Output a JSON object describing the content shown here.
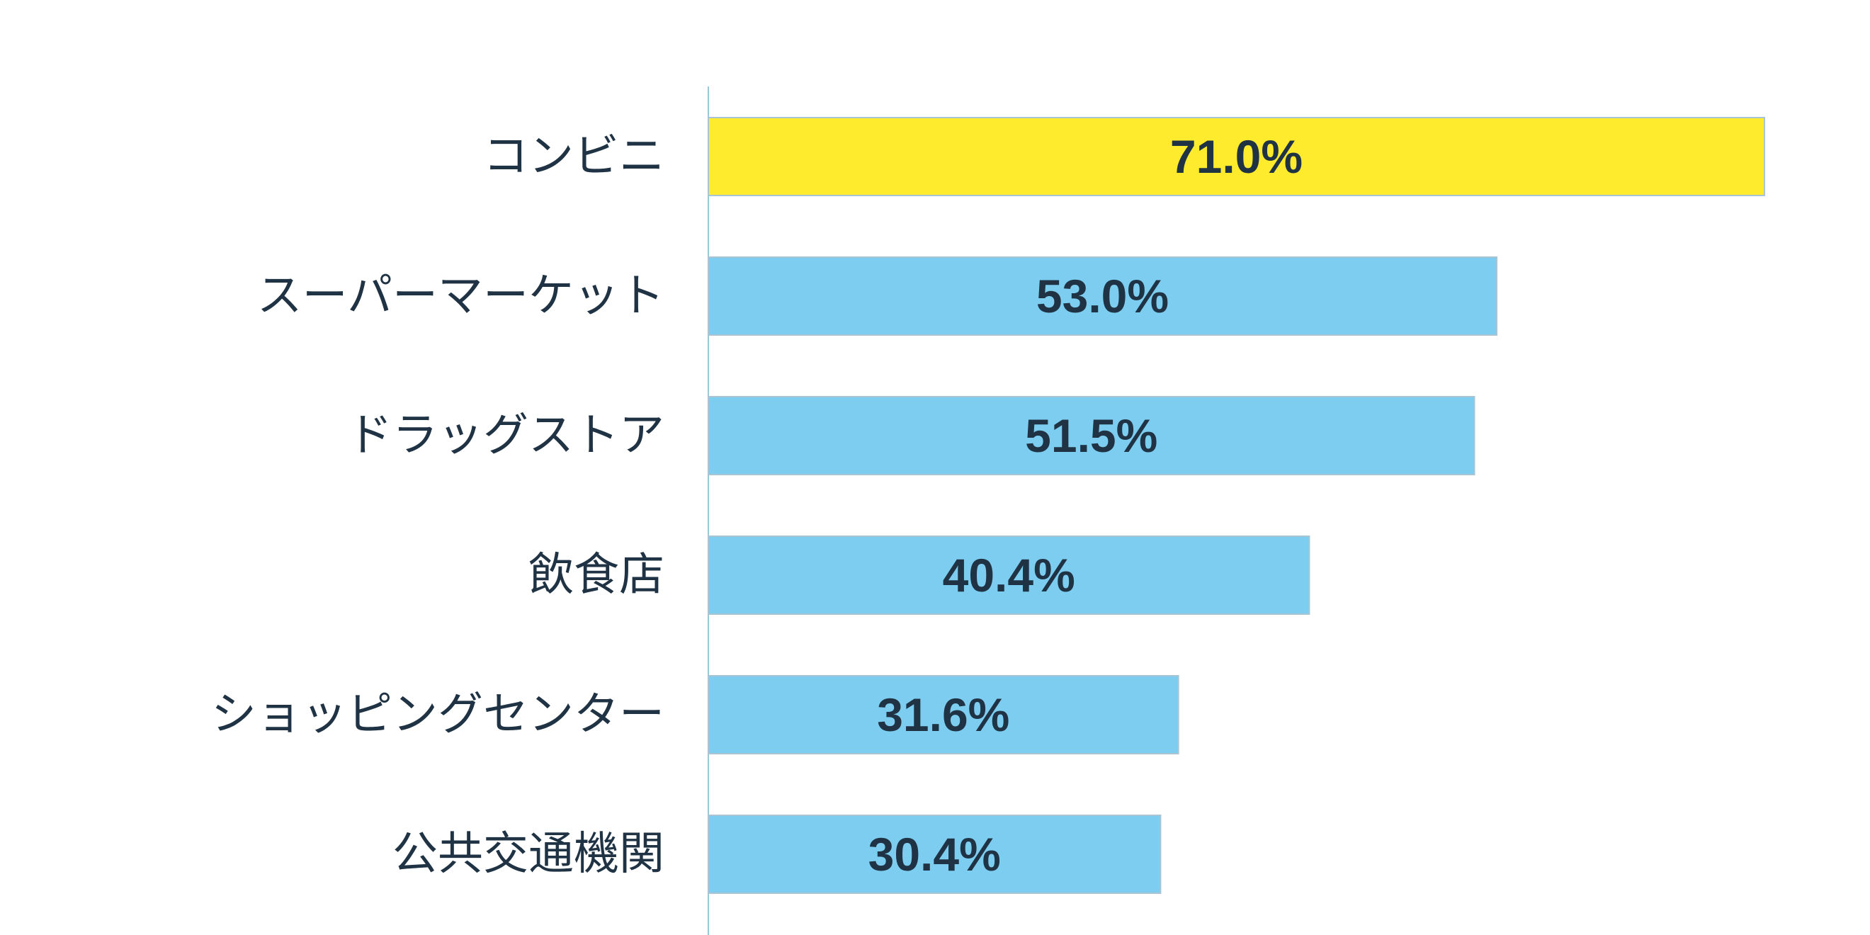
{
  "chart_data": {
    "type": "bar",
    "orientation": "horizontal",
    "title": "",
    "xlabel": "",
    "ylabel": "",
    "categories": [
      "コンビニ",
      "スーパーマーケット",
      "ドラッグストア",
      "飲食店",
      "ショッピングセンター",
      "公共交通機関"
    ],
    "values": [
      71.0,
      53.0,
      51.5,
      40.4,
      31.6,
      30.4
    ],
    "value_labels": [
      "71.0%",
      "53.0%",
      "51.5%",
      "40.4%",
      "31.6%",
      "30.4%"
    ],
    "highlight_index": 0,
    "xlim": [
      0,
      100
    ],
    "grid": false,
    "legend": "none"
  },
  "colors": {
    "highlight": "#ffeb2e",
    "bar": "#7ccdef",
    "bar_edge": "#a9c4d3",
    "axis": "#9cc8dc",
    "text": "#1f3344"
  }
}
